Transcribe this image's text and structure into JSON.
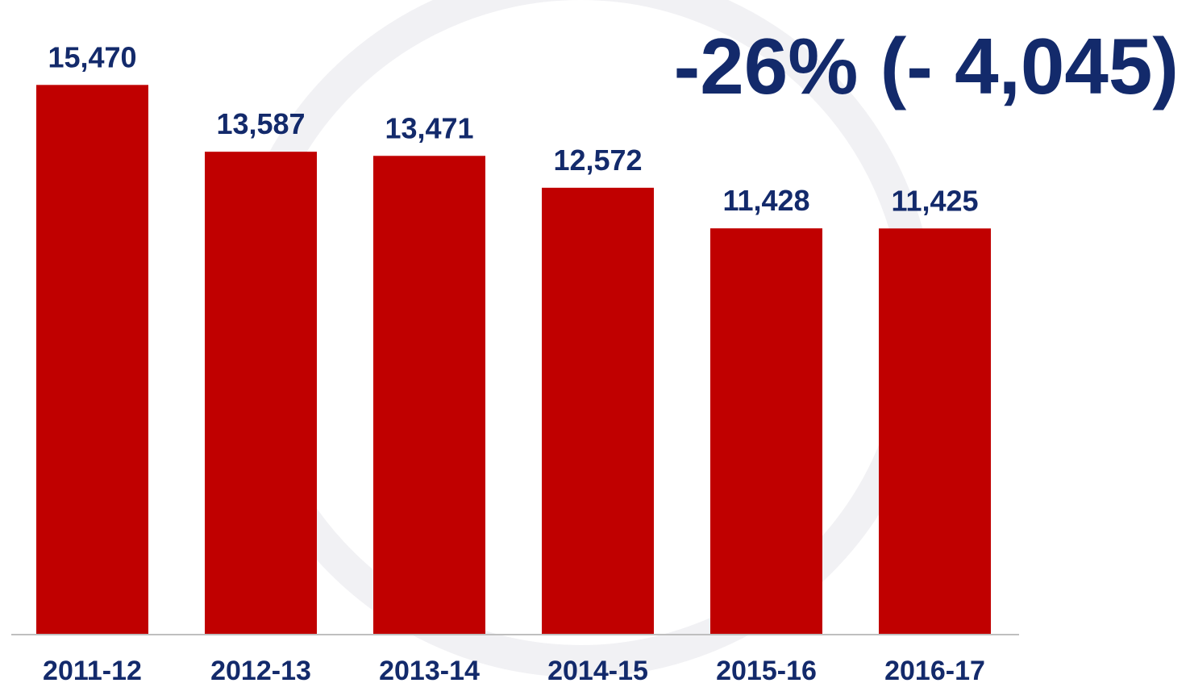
{
  "chart_data": {
    "type": "bar",
    "annotation": "-26% (- 4,045)",
    "categories": [
      "2011-12",
      "2012-13",
      "2013-14",
      "2014-15",
      "2015-16",
      "2016-17"
    ],
    "values": [
      15470,
      13587,
      13471,
      12572,
      11428,
      11425
    ],
    "value_labels": [
      "15,470",
      "13,587",
      "13,471",
      "12,572",
      "11,428",
      "11,425"
    ],
    "color": "#c00000",
    "ylim": [
      0,
      16000
    ]
  }
}
